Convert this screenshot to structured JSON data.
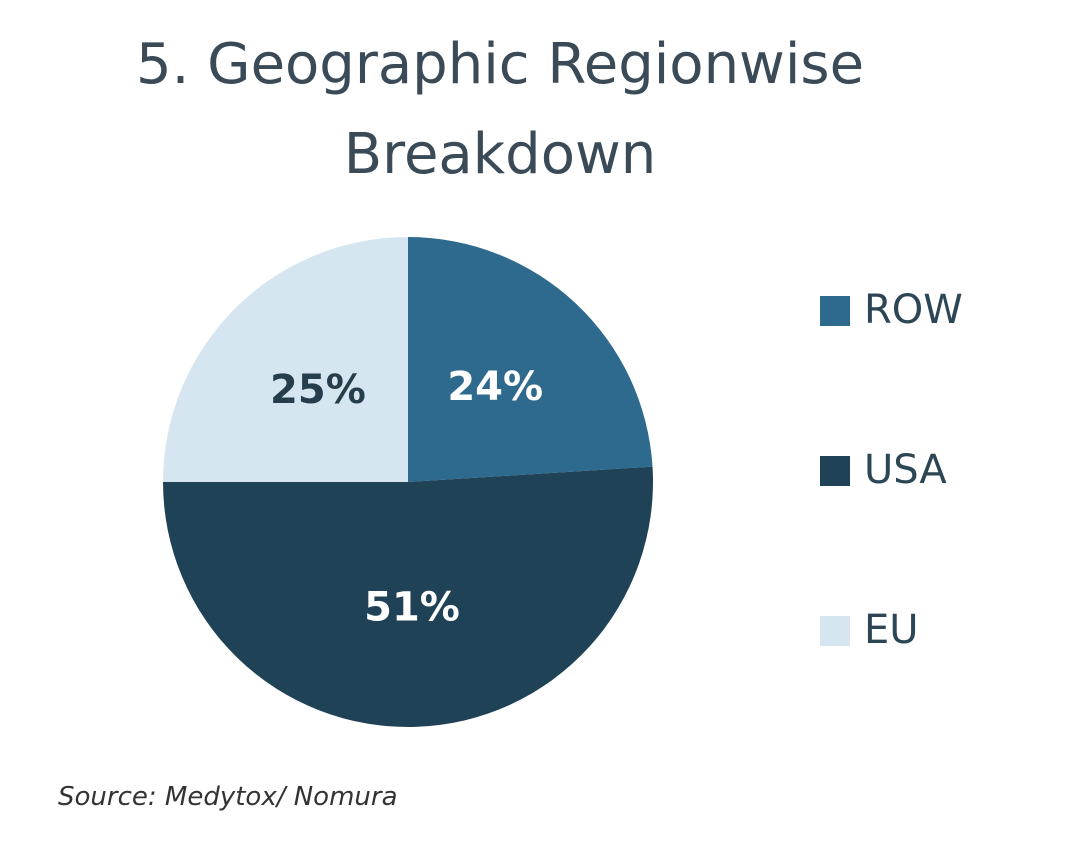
{
  "chart_data": {
    "type": "pie",
    "title": "5. Geographic Regionwise Breakdown",
    "categories": [
      "ROW",
      "USA",
      "EU"
    ],
    "values": [
      24,
      51,
      25
    ],
    "value_labels": [
      "24%",
      "51%",
      "25%"
    ],
    "colors": [
      "#2e6a8e",
      "#1f4257",
      "#d6e6f0"
    ],
    "source": "Source: Medytox/ Nomura"
  }
}
